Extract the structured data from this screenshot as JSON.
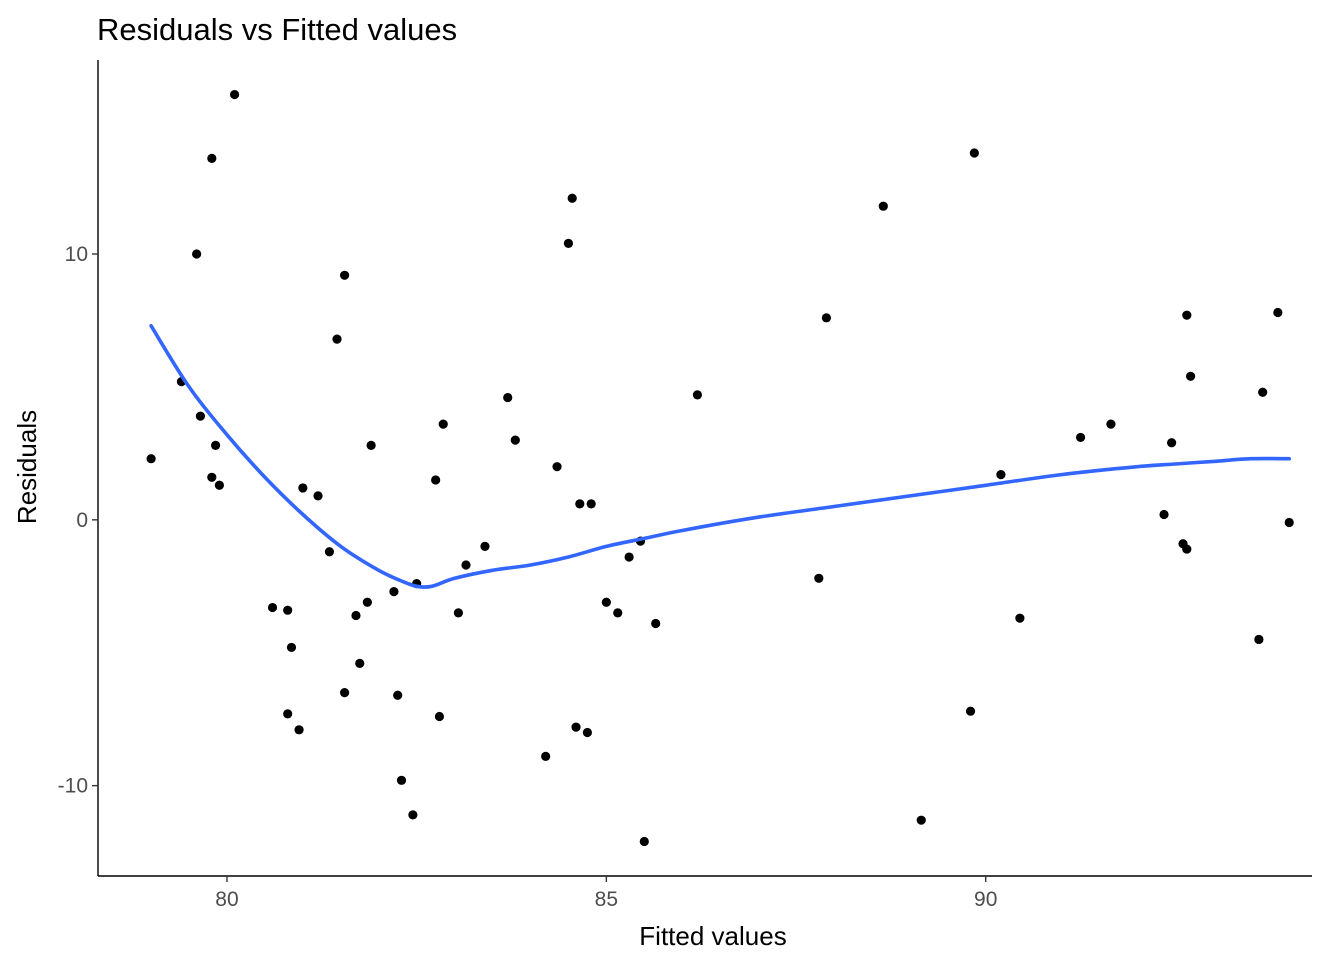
{
  "chart_data": {
    "type": "scatter",
    "title": "Residuals vs Fitted values",
    "xlabel": "Fitted values",
    "ylabel": "Residuals",
    "xlim": [
      78.3,
      94.3
    ],
    "ylim": [
      -13.4,
      17.3
    ],
    "x_ticks": [
      80,
      85,
      90
    ],
    "x_tick_labels": [
      "80",
      "85",
      "90"
    ],
    "y_ticks": [
      -10,
      0,
      10
    ],
    "y_tick_labels": [
      "-10",
      "0",
      "10"
    ],
    "grid": false,
    "legend": "none",
    "colors": {
      "points": "#000000",
      "smooth": "#3366ff",
      "axes": "#000000",
      "tick_labels": "#4d4d4d"
    },
    "points": [
      {
        "x": 79.0,
        "y": 2.3
      },
      {
        "x": 79.4,
        "y": 5.2
      },
      {
        "x": 79.6,
        "y": 10.0
      },
      {
        "x": 79.65,
        "y": 3.9
      },
      {
        "x": 79.8,
        "y": 13.6
      },
      {
        "x": 79.8,
        "y": 1.6
      },
      {
        "x": 79.85,
        "y": 2.8
      },
      {
        "x": 79.9,
        "y": 1.3
      },
      {
        "x": 80.1,
        "y": 16.0
      },
      {
        "x": 80.6,
        "y": -3.3
      },
      {
        "x": 80.8,
        "y": -3.4
      },
      {
        "x": 80.8,
        "y": -7.3
      },
      {
        "x": 80.85,
        "y": -4.8
      },
      {
        "x": 80.95,
        "y": -7.9
      },
      {
        "x": 81.0,
        "y": 1.2
      },
      {
        "x": 81.2,
        "y": 0.9
      },
      {
        "x": 81.35,
        "y": -1.2
      },
      {
        "x": 81.45,
        "y": 6.8
      },
      {
        "x": 81.55,
        "y": 9.2
      },
      {
        "x": 81.55,
        "y": -6.5
      },
      {
        "x": 81.7,
        "y": -3.6
      },
      {
        "x": 81.75,
        "y": -5.4
      },
      {
        "x": 81.85,
        "y": -3.1
      },
      {
        "x": 81.9,
        "y": 2.8
      },
      {
        "x": 82.2,
        "y": -2.7
      },
      {
        "x": 82.25,
        "y": -6.6
      },
      {
        "x": 82.3,
        "y": -9.8
      },
      {
        "x": 82.45,
        "y": -11.1
      },
      {
        "x": 82.5,
        "y": -2.4
      },
      {
        "x": 82.75,
        "y": 1.5
      },
      {
        "x": 82.8,
        "y": -7.4
      },
      {
        "x": 82.85,
        "y": 3.6
      },
      {
        "x": 83.05,
        "y": -3.5
      },
      {
        "x": 83.15,
        "y": -1.7
      },
      {
        "x": 83.4,
        "y": -1.0
      },
      {
        "x": 83.7,
        "y": 4.6
      },
      {
        "x": 83.8,
        "y": 3.0
      },
      {
        "x": 84.2,
        "y": -8.9
      },
      {
        "x": 84.35,
        "y": 2.0
      },
      {
        "x": 84.5,
        "y": 10.4
      },
      {
        "x": 84.55,
        "y": 12.1
      },
      {
        "x": 84.6,
        "y": -7.8
      },
      {
        "x": 84.65,
        "y": 0.6
      },
      {
        "x": 84.75,
        "y": -8.0
      },
      {
        "x": 84.8,
        "y": 0.6
      },
      {
        "x": 85.0,
        "y": -3.1
      },
      {
        "x": 85.15,
        "y": -3.5
      },
      {
        "x": 85.3,
        "y": -1.4
      },
      {
        "x": 85.45,
        "y": -0.8
      },
      {
        "x": 85.5,
        "y": -12.1
      },
      {
        "x": 85.65,
        "y": -3.9
      },
      {
        "x": 86.2,
        "y": 4.7
      },
      {
        "x": 87.8,
        "y": -2.2
      },
      {
        "x": 87.9,
        "y": 7.6
      },
      {
        "x": 88.65,
        "y": 11.8
      },
      {
        "x": 89.15,
        "y": -11.3
      },
      {
        "x": 89.8,
        "y": -7.2
      },
      {
        "x": 89.85,
        "y": 13.8
      },
      {
        "x": 90.2,
        "y": 1.7
      },
      {
        "x": 90.45,
        "y": -3.7
      },
      {
        "x": 91.25,
        "y": 3.1
      },
      {
        "x": 91.65,
        "y": 3.6
      },
      {
        "x": 92.35,
        "y": 0.2
      },
      {
        "x": 92.45,
        "y": 2.9
      },
      {
        "x": 92.6,
        "y": -0.9
      },
      {
        "x": 92.65,
        "y": -1.1
      },
      {
        "x": 92.65,
        "y": 7.7
      },
      {
        "x": 92.7,
        "y": 5.4
      },
      {
        "x": 93.6,
        "y": -4.5
      },
      {
        "x": 93.65,
        "y": 4.8
      },
      {
        "x": 93.85,
        "y": 7.8
      },
      {
        "x": 94.0,
        "y": -0.1
      }
    ],
    "smooth_line": {
      "x": [
        79.0,
        79.5,
        80.0,
        80.5,
        81.0,
        81.5,
        82.0,
        82.3,
        82.5,
        82.7,
        83.0,
        83.5,
        84.0,
        84.5,
        85.0,
        85.5,
        86.0,
        87.0,
        88.0,
        89.0,
        90.0,
        91.0,
        92.0,
        92.5,
        93.0,
        93.5,
        94.0
      ],
      "y": [
        7.3,
        5.0,
        3.2,
        1.6,
        0.2,
        -1.0,
        -1.9,
        -2.3,
        -2.5,
        -2.5,
        -2.2,
        -1.9,
        -1.7,
        -1.4,
        -1.0,
        -0.7,
        -0.4,
        0.1,
        0.5,
        0.9,
        1.3,
        1.7,
        2.0,
        2.1,
        2.2,
        2.3,
        2.3
      ]
    }
  }
}
